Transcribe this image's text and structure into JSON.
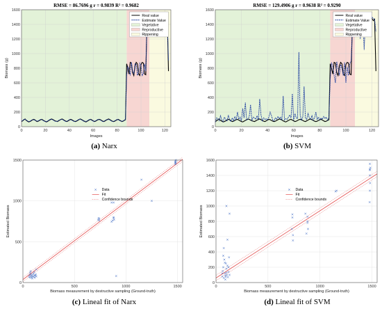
{
  "captions": [
    {
      "label": "(a)",
      "text": "Narx"
    },
    {
      "label": "(b)",
      "text": "SVM"
    },
    {
      "label": "(c)",
      "text": "Lineal fit of Narx"
    },
    {
      "label": "(d)",
      "text": "Lineal fit of SVM"
    }
  ],
  "chart_data": [
    {
      "type": "line",
      "title": "RMSE = 86.7696 g r = 0.9839 R² = 0.9682",
      "xlabel": "Images",
      "ylabel": "Biomass (g)",
      "xlim": [
        0,
        125
      ],
      "ylim": [
        0,
        1600
      ],
      "xticks": [
        0,
        20,
        40,
        60,
        80,
        100,
        120
      ],
      "yticks": [
        0,
        200,
        400,
        600,
        800,
        1000,
        1200,
        1400,
        1600
      ],
      "regions": [
        {
          "name": "Vegetative",
          "from": 0,
          "to": 88,
          "color": "#e3f2d8"
        },
        {
          "name": "Reproductive",
          "from": 88,
          "to": 107,
          "color": "#f7d6d2"
        },
        {
          "name": "Rippening",
          "from": 107,
          "to": 125,
          "color": "#fafae0"
        }
      ],
      "series": [
        {
          "name": "Real value",
          "color": "#000000",
          "values": [
            70,
            80,
            95,
            105,
            85,
            75,
            65,
            70,
            80,
            90,
            100,
            95,
            80,
            70,
            75,
            85,
            95,
            100,
            90,
            80,
            70,
            65,
            75,
            85,
            95,
            105,
            100,
            90,
            80,
            75,
            70,
            80,
            90,
            100,
            105,
            95,
            85,
            75,
            70,
            80,
            90,
            100,
            95,
            85,
            75,
            70,
            75,
            85,
            95,
            105,
            100,
            90,
            80,
            70,
            65,
            75,
            85,
            95,
            100,
            90,
            80,
            70,
            75,
            85,
            95,
            100,
            95,
            85,
            75,
            70,
            80,
            90,
            100,
            105,
            95,
            85,
            75,
            70,
            75,
            85,
            95,
            100,
            90,
            80,
            70,
            75,
            85,
            95,
            860,
            800,
            720,
            880,
            870,
            740,
            700,
            830,
            880,
            860,
            720,
            700,
            850,
            880,
            870,
            720,
            710,
            1430,
            1490,
            1460,
            1480,
            1500,
            1470,
            1480,
            1490,
            1460,
            1250,
            1470,
            1490,
            1480,
            1460,
            1470,
            1480,
            1450,
            1470,
            760
          ]
        },
        {
          "name": "Estimate Value",
          "color": "#1f3fa0",
          "dashed": true,
          "values": [
            75,
            85,
            100,
            100,
            90,
            80,
            70,
            75,
            85,
            95,
            95,
            90,
            85,
            75,
            80,
            90,
            100,
            95,
            85,
            75,
            75,
            70,
            80,
            90,
            100,
            100,
            95,
            85,
            75,
            70,
            75,
            85,
            95,
            95,
            100,
            90,
            80,
            70,
            75,
            85,
            95,
            95,
            90,
            80,
            70,
            75,
            80,
            90,
            100,
            100,
            95,
            85,
            75,
            75,
            70,
            80,
            90,
            100,
            95,
            85,
            75,
            75,
            80,
            90,
            100,
            95,
            90,
            80,
            70,
            75,
            85,
            95,
            95,
            100,
            90,
            80,
            70,
            75,
            80,
            90,
            100,
            95,
            85,
            75,
            75,
            80,
            90,
            100,
            700,
            820,
            790,
            700,
            880,
            760,
            720,
            860,
            850,
            700,
            750,
            870,
            840,
            700,
            730,
            860,
            760,
            1400,
            1460,
            1500,
            1460,
            1490,
            1480,
            1470,
            1500,
            1480,
            1300,
            1450,
            1480,
            1500,
            1470,
            1460,
            1490,
            1470,
            1480,
            900
          ]
        }
      ]
    },
    {
      "type": "line",
      "title": "RMSE = 129.4906 g r = 0.9638 R² = 0.9290",
      "xlabel": "Images",
      "ylabel": "Biomass (g)",
      "xlim": [
        0,
        125
      ],
      "ylim": [
        0,
        1600
      ],
      "xticks": [
        0,
        20,
        40,
        60,
        80,
        100,
        120
      ],
      "yticks": [
        0,
        200,
        400,
        600,
        800,
        1000,
        1200,
        1400,
        1600
      ],
      "regions": [
        {
          "name": "Vegetative",
          "from": 0,
          "to": 88,
          "color": "#e3f2d8"
        },
        {
          "name": "Reproductive",
          "from": 88,
          "to": 107,
          "color": "#f7d6d2"
        },
        {
          "name": "Rippening",
          "from": 107,
          "to": 125,
          "color": "#fafae0"
        }
      ],
      "series": [
        {
          "name": "Real value",
          "color": "#000000",
          "values": [
            70,
            80,
            95,
            105,
            85,
            75,
            65,
            70,
            80,
            90,
            100,
            95,
            80,
            70,
            75,
            85,
            95,
            100,
            90,
            80,
            70,
            65,
            75,
            85,
            95,
            105,
            100,
            90,
            80,
            75,
            70,
            80,
            90,
            100,
            105,
            95,
            85,
            75,
            70,
            80,
            90,
            100,
            95,
            85,
            75,
            70,
            75,
            85,
            95,
            105,
            100,
            90,
            80,
            70,
            65,
            75,
            85,
            95,
            100,
            90,
            80,
            70,
            75,
            85,
            95,
            100,
            95,
            85,
            75,
            70,
            80,
            90,
            100,
            105,
            95,
            85,
            75,
            70,
            75,
            85,
            95,
            100,
            90,
            80,
            70,
            75,
            85,
            95,
            860,
            800,
            720,
            880,
            870,
            740,
            700,
            830,
            880,
            860,
            720,
            700,
            850,
            880,
            870,
            720,
            710,
            1430,
            1490,
            1460,
            1480,
            1500,
            1470,
            1480,
            1490,
            1460,
            1250,
            1470,
            1490,
            1480,
            1460,
            1470,
            1480,
            1450,
            1470,
            760
          ]
        },
        {
          "name": "Estimate Value",
          "color": "#1f3fa0",
          "dashed": true,
          "values": [
            60,
            120,
            110,
            80,
            150,
            90,
            70,
            130,
            100,
            80,
            160,
            90,
            70,
            120,
            80,
            140,
            90,
            200,
            100,
            130,
            80,
            250,
            120,
            330,
            90,
            100,
            140,
            300,
            80,
            130,
            120,
            100,
            150,
            90,
            380,
            160,
            80,
            120,
            100,
            110,
            90,
            130,
            200,
            150,
            90,
            80,
            120,
            100,
            140,
            110,
            130,
            90,
            420,
            90,
            110,
            100,
            130,
            160,
            120,
            450,
            90,
            180,
            120,
            110,
            1020,
            160,
            90,
            130,
            550,
            120,
            100,
            180,
            120,
            100,
            150,
            90,
            120,
            200,
            100,
            130,
            90,
            120,
            100,
            140,
            110,
            130,
            90,
            120,
            650,
            880,
            820,
            700,
            600,
            890,
            800,
            700,
            850,
            800,
            700,
            880,
            600,
            820,
            700,
            860,
            900,
            1300,
            1500,
            1550,
            1450,
            1400,
            1480,
            1200,
            1500,
            1520,
            1050,
            1470,
            1500,
            1300,
            1480,
            1450,
            1500,
            1480,
            1470,
            1300
          ]
        }
      ]
    },
    {
      "type": "scatter",
      "xlabel": "Biomass measurement by destructive sampling (Ground-truth)",
      "ylabel": "Estimated Biomass",
      "xlim": [
        0,
        1550
      ],
      "ylim": [
        0,
        1500
      ],
      "xticks": [
        0,
        500,
        1000,
        1500
      ],
      "yticks": [
        0,
        500,
        1000,
        1500
      ],
      "legend": [
        "Data",
        "Fit",
        "Confidence bounds"
      ],
      "fit": {
        "x": [
          0,
          1550
        ],
        "y": [
          37,
          1510
        ]
      },
      "confidence": {
        "offset": 25
      },
      "points": [
        [
          60,
          70
        ],
        [
          65,
          90
        ],
        [
          70,
          60
        ],
        [
          75,
          100
        ],
        [
          80,
          80
        ],
        [
          85,
          65
        ],
        [
          90,
          95
        ],
        [
          95,
          75
        ],
        [
          100,
          110
        ],
        [
          105,
          70
        ],
        [
          110,
          90
        ],
        [
          115,
          60
        ],
        [
          120,
          85
        ],
        [
          125,
          100
        ],
        [
          130,
          75
        ],
        [
          70,
          120
        ],
        [
          90,
          50
        ],
        [
          110,
          130
        ],
        [
          130,
          160
        ],
        [
          75,
          140
        ],
        [
          730,
          770
        ],
        [
          735,
          790
        ],
        [
          740,
          760
        ],
        [
          740,
          780
        ],
        [
          880,
          790
        ],
        [
          885,
          770
        ],
        [
          880,
          800
        ],
        [
          870,
          760
        ],
        [
          860,
          980
        ],
        [
          860,
          745
        ],
        [
          880,
          980
        ],
        [
          905,
          80
        ],
        [
          1150,
          1260
        ],
        [
          1480,
          1470
        ],
        [
          1480,
          1490
        ],
        [
          1482,
          1460
        ],
        [
          1485,
          1500
        ],
        [
          1480,
          1480
        ],
        [
          1478,
          1450
        ],
        [
          1250,
          1000
        ]
      ]
    },
    {
      "type": "scatter",
      "xlabel": "Biomass measurement by destructive sampling (Ground-truth)",
      "ylabel": "Estimated Biomass",
      "xlim": [
        0,
        1550
      ],
      "ylim": [
        0,
        1600
      ],
      "xticks": [
        0,
        500,
        1000,
        1500
      ],
      "yticks": [
        0,
        200,
        400,
        600,
        800,
        1000,
        1200,
        1400,
        1600
      ],
      "legend": [
        "Data",
        "Fit",
        "Confidence bounds"
      ],
      "fit": {
        "x": [
          0,
          1550
        ],
        "y": [
          60,
          1420
        ]
      },
      "confidence": {
        "offset": 35
      },
      "points": [
        [
          60,
          80
        ],
        [
          65,
          150
        ],
        [
          70,
          200
        ],
        [
          75,
          60
        ],
        [
          80,
          300
        ],
        [
          85,
          120
        ],
        [
          90,
          90
        ],
        [
          95,
          250
        ],
        [
          100,
          180
        ],
        [
          105,
          100
        ],
        [
          110,
          560
        ],
        [
          115,
          70
        ],
        [
          120,
          140
        ],
        [
          125,
          330
        ],
        [
          130,
          100
        ],
        [
          70,
          350
        ],
        [
          90,
          40
        ],
        [
          110,
          220
        ],
        [
          130,
          900
        ],
        [
          75,
          450
        ],
        [
          100,
          1000
        ],
        [
          60,
          120
        ],
        [
          85,
          260
        ],
        [
          95,
          75
        ],
        [
          120,
          200
        ],
        [
          100,
          130
        ],
        [
          730,
          700
        ],
        [
          735,
          850
        ],
        [
          740,
          620
        ],
        [
          740,
          550
        ],
        [
          735,
          890
        ],
        [
          880,
          780
        ],
        [
          885,
          700
        ],
        [
          880,
          800
        ],
        [
          870,
          640
        ],
        [
          860,
          900
        ],
        [
          880,
          860
        ],
        [
          1480,
          1470
        ],
        [
          1480,
          1550
        ],
        [
          1482,
          1300
        ],
        [
          1485,
          1500
        ],
        [
          1480,
          1200
        ],
        [
          1478,
          1050
        ],
        [
          1480,
          1400
        ],
        [
          1480,
          1480
        ],
        [
          1150,
          1190
        ],
        [
          1160,
          1200
        ]
      ]
    }
  ]
}
